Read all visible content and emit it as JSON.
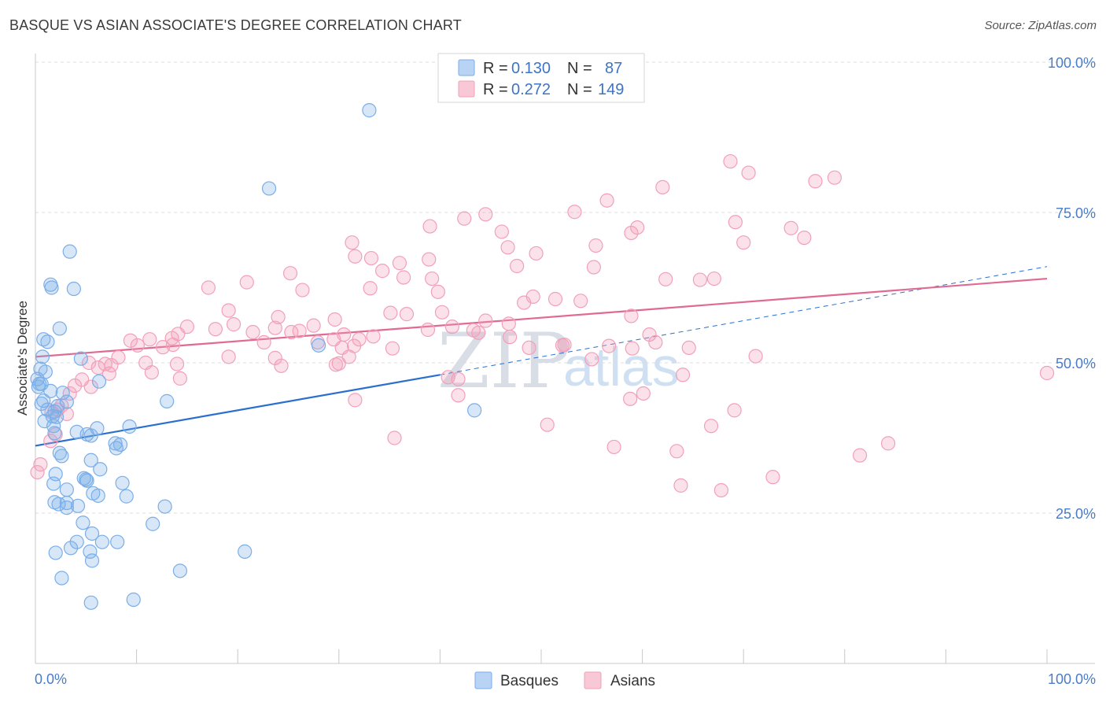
{
  "title": "BASQUE VS ASIAN ASSOCIATE'S DEGREE CORRELATION CHART",
  "source": "Source: ZipAtlas.com",
  "colors": {
    "basques": "#7aaee8",
    "basques_fill": "rgba(122,174,232,0.30)",
    "basques_line": "#2a6fcf",
    "asians": "#f2a0ba",
    "asians_fill": "rgba(242,160,186,0.30)",
    "asians_line": "#e06a93",
    "tick": "#4a7cc7",
    "grid": "#dcdcdc"
  },
  "legend": {
    "rows": [
      {
        "r_label": "R =",
        "r_value": "0.130",
        "n_label": "N =",
        "n_value": "87"
      },
      {
        "r_label": "R =",
        "r_value": "0.272",
        "n_label": "N =",
        "n_value": "149"
      }
    ]
  },
  "bottom_legend": [
    "Basques",
    "Asians"
  ],
  "watermark": {
    "a": "ZIP",
    "b": "atlas"
  },
  "chart_data": {
    "type": "scatter",
    "title": "BASQUE VS ASIAN ASSOCIATE'S DEGREE CORRELATION CHART",
    "xlabel": "",
    "ylabel": "Associate's Degree",
    "xlim": [
      0,
      100
    ],
    "ylim": [
      0,
      100
    ],
    "x_tick_labels": [
      "0.0%",
      "100.0%"
    ],
    "y_ticks": [
      25,
      50,
      75,
      100
    ],
    "y_tick_labels": [
      "25.0%",
      "50.0%",
      "75.0%",
      "100.0%"
    ],
    "grid": true,
    "legend_placement": "top-center",
    "series": [
      {
        "name": "Basques",
        "R": 0.13,
        "N": 87,
        "trend": {
          "x0": 0,
          "y0": 36.2,
          "x1": 40,
          "y1": 48.0,
          "dashed_to": {
            "x": 100,
            "y": 66.0
          }
        },
        "points": [
          [
            33.0,
            92.0
          ],
          [
            23.1,
            79.0
          ],
          [
            3.4,
            68.5
          ],
          [
            1.5,
            63.0
          ],
          [
            1.6,
            62.5
          ],
          [
            3.8,
            62.3
          ],
          [
            0.8,
            53.9
          ],
          [
            1.2,
            53.5
          ],
          [
            2.4,
            55.7
          ],
          [
            0.7,
            51.0
          ],
          [
            0.5,
            49.0
          ],
          [
            1.0,
            48.5
          ],
          [
            0.2,
            47.3
          ],
          [
            0.4,
            46.5
          ],
          [
            0.3,
            46.0
          ],
          [
            0.6,
            46.5
          ],
          [
            1.5,
            45.3
          ],
          [
            2.7,
            45.0
          ],
          [
            0.8,
            43.7
          ],
          [
            0.6,
            43.2
          ],
          [
            2.2,
            42.8
          ],
          [
            1.2,
            42.2
          ],
          [
            1.9,
            41.9
          ],
          [
            1.7,
            41.1
          ],
          [
            2.1,
            41.0
          ],
          [
            3.1,
            43.5
          ],
          [
            0.9,
            40.3
          ],
          [
            1.8,
            39.5
          ],
          [
            1.9,
            38.3
          ],
          [
            4.1,
            38.5
          ],
          [
            5.1,
            38.1
          ],
          [
            5.5,
            37.9
          ],
          [
            6.1,
            39.1
          ],
          [
            7.9,
            36.6
          ],
          [
            8.4,
            36.4
          ],
          [
            8.0,
            35.8
          ],
          [
            2.4,
            35.0
          ],
          [
            2.6,
            34.5
          ],
          [
            5.5,
            33.8
          ],
          [
            6.4,
            32.3
          ],
          [
            2.0,
            31.5
          ],
          [
            4.8,
            30.8
          ],
          [
            5.1,
            30.4
          ],
          [
            5.0,
            30.6
          ],
          [
            1.8,
            29.9
          ],
          [
            8.6,
            30.0
          ],
          [
            3.1,
            28.9
          ],
          [
            5.7,
            28.3
          ],
          [
            6.2,
            27.9
          ],
          [
            9.0,
            27.8
          ],
          [
            2.3,
            26.5
          ],
          [
            3.1,
            26.7
          ],
          [
            1.9,
            26.8
          ],
          [
            4.2,
            26.2
          ],
          [
            12.8,
            26.1
          ],
          [
            3.1,
            25.9
          ],
          [
            4.7,
            23.4
          ],
          [
            11.6,
            23.2
          ],
          [
            5.6,
            21.6
          ],
          [
            6.6,
            20.2
          ],
          [
            8.1,
            20.2
          ],
          [
            4.1,
            20.2
          ],
          [
            3.5,
            19.2
          ],
          [
            2.0,
            18.4
          ],
          [
            5.4,
            18.6
          ],
          [
            20.7,
            18.6
          ],
          [
            5.6,
            17.1
          ],
          [
            2.6,
            14.2
          ],
          [
            14.3,
            15.4
          ],
          [
            5.5,
            10.1
          ],
          [
            9.7,
            10.6
          ],
          [
            9.3,
            39.4
          ],
          [
            13.0,
            43.6
          ],
          [
            6.3,
            46.9
          ],
          [
            4.5,
            50.7
          ],
          [
            43.4,
            42.1
          ],
          [
            28.0,
            52.9
          ]
        ]
      },
      {
        "name": "Asians",
        "R": 0.272,
        "N": 149,
        "trend": {
          "x0": 0,
          "y0": 51.0,
          "x1": 100,
          "y1": 64.0
        },
        "points": [
          [
            68.7,
            83.5
          ],
          [
            70.5,
            81.6
          ],
          [
            77.1,
            80.2
          ],
          [
            79.0,
            80.8
          ],
          [
            62.0,
            79.2
          ],
          [
            56.5,
            77.0
          ],
          [
            53.3,
            75.1
          ],
          [
            44.5,
            74.7
          ],
          [
            42.4,
            74.0
          ],
          [
            39.0,
            72.7
          ],
          [
            59.5,
            72.5
          ],
          [
            46.1,
            71.8
          ],
          [
            58.9,
            71.6
          ],
          [
            69.2,
            73.4
          ],
          [
            74.7,
            72.4
          ],
          [
            76.0,
            70.8
          ],
          [
            31.3,
            70.0
          ],
          [
            70.0,
            70.0
          ],
          [
            46.7,
            69.2
          ],
          [
            55.4,
            69.5
          ],
          [
            49.5,
            68.2
          ],
          [
            31.6,
            67.7
          ],
          [
            33.2,
            67.4
          ],
          [
            38.9,
            67.2
          ],
          [
            36.0,
            66.6
          ],
          [
            47.6,
            66.1
          ],
          [
            55.2,
            65.9
          ],
          [
            25.2,
            64.9
          ],
          [
            34.3,
            65.3
          ],
          [
            36.4,
            64.2
          ],
          [
            20.9,
            63.4
          ],
          [
            39.2,
            64.0
          ],
          [
            62.3,
            63.9
          ],
          [
            65.7,
            63.8
          ],
          [
            67.1,
            64.0
          ],
          [
            17.1,
            62.5
          ],
          [
            33.1,
            62.4
          ],
          [
            26.4,
            62.1
          ],
          [
            39.8,
            61.8
          ],
          [
            49.2,
            61.0
          ],
          [
            51.4,
            60.6
          ],
          [
            48.3,
            60.0
          ],
          [
            53.9,
            60.3
          ],
          [
            19.1,
            58.7
          ],
          [
            35.1,
            58.3
          ],
          [
            40.2,
            58.4
          ],
          [
            24.0,
            57.6
          ],
          [
            29.6,
            57.2
          ],
          [
            36.7,
            58.1
          ],
          [
            58.9,
            57.8
          ],
          [
            44.5,
            57.0
          ],
          [
            46.8,
            56.5
          ],
          [
            15.0,
            56.0
          ],
          [
            17.8,
            55.6
          ],
          [
            19.6,
            56.4
          ],
          [
            23.7,
            55.8
          ],
          [
            26.1,
            55.3
          ],
          [
            13.5,
            54.1
          ],
          [
            14.1,
            54.8
          ],
          [
            21.5,
            55.1
          ],
          [
            25.3,
            55.1
          ],
          [
            30.5,
            54.7
          ],
          [
            32.0,
            53.9
          ],
          [
            33.4,
            54.4
          ],
          [
            60.7,
            54.7
          ],
          [
            43.3,
            55.4
          ],
          [
            13.6,
            53.0
          ],
          [
            11.3,
            53.9
          ],
          [
            27.9,
            53.4
          ],
          [
            29.5,
            53.9
          ],
          [
            9.4,
            53.7
          ],
          [
            10.1,
            52.9
          ],
          [
            31.5,
            52.8
          ],
          [
            35.3,
            52.4
          ],
          [
            46.9,
            54.3
          ],
          [
            52.3,
            53.0
          ],
          [
            52.1,
            52.9
          ],
          [
            56.7,
            52.8
          ],
          [
            59.0,
            52.4
          ],
          [
            61.3,
            53.4
          ],
          [
            64.6,
            52.5
          ],
          [
            30.3,
            52.5
          ],
          [
            6.9,
            49.8
          ],
          [
            7.5,
            49.6
          ],
          [
            14.0,
            49.8
          ],
          [
            8.2,
            50.9
          ],
          [
            6.2,
            49.2
          ],
          [
            5.3,
            50.0
          ],
          [
            24.3,
            49.5
          ],
          [
            29.7,
            49.7
          ],
          [
            30.0,
            49.9
          ],
          [
            23.7,
            50.8
          ],
          [
            19.1,
            51.0
          ],
          [
            31.0,
            51.0
          ],
          [
            55.0,
            50.6
          ],
          [
            71.2,
            51.1
          ],
          [
            10.9,
            50.0
          ],
          [
            7.3,
            48.2
          ],
          [
            11.5,
            48.4
          ],
          [
            4.6,
            47.2
          ],
          [
            14.3,
            47.4
          ],
          [
            5.5,
            46.0
          ],
          [
            3.9,
            46.2
          ],
          [
            40.8,
            47.6
          ],
          [
            41.8,
            47.3
          ],
          [
            64.0,
            48.0
          ],
          [
            3.4,
            44.9
          ],
          [
            31.6,
            43.8
          ],
          [
            41.8,
            44.6
          ],
          [
            60.1,
            44.9
          ],
          [
            58.8,
            44.0
          ],
          [
            1.6,
            41.8
          ],
          [
            2.6,
            42.9
          ],
          [
            3.1,
            41.5
          ],
          [
            2.2,
            42.2
          ],
          [
            69.1,
            42.1
          ],
          [
            50.6,
            39.7
          ],
          [
            66.8,
            39.5
          ],
          [
            2.0,
            38.1
          ],
          [
            35.5,
            37.5
          ],
          [
            1.5,
            37.0
          ],
          [
            84.3,
            36.6
          ],
          [
            57.2,
            36.0
          ],
          [
            63.4,
            35.3
          ],
          [
            81.5,
            34.6
          ],
          [
            0.5,
            33.1
          ],
          [
            0.2,
            31.8
          ],
          [
            72.9,
            31.0
          ],
          [
            63.8,
            29.6
          ],
          [
            67.8,
            28.8
          ],
          [
            100.0,
            48.3
          ],
          [
            48.8,
            52.5
          ],
          [
            38.8,
            55.5
          ],
          [
            41.2,
            56.0
          ],
          [
            22.6,
            53.4
          ],
          [
            12.6,
            52.6
          ],
          [
            27.5,
            56.2
          ],
          [
            43.8,
            55.0
          ]
        ]
      }
    ]
  }
}
